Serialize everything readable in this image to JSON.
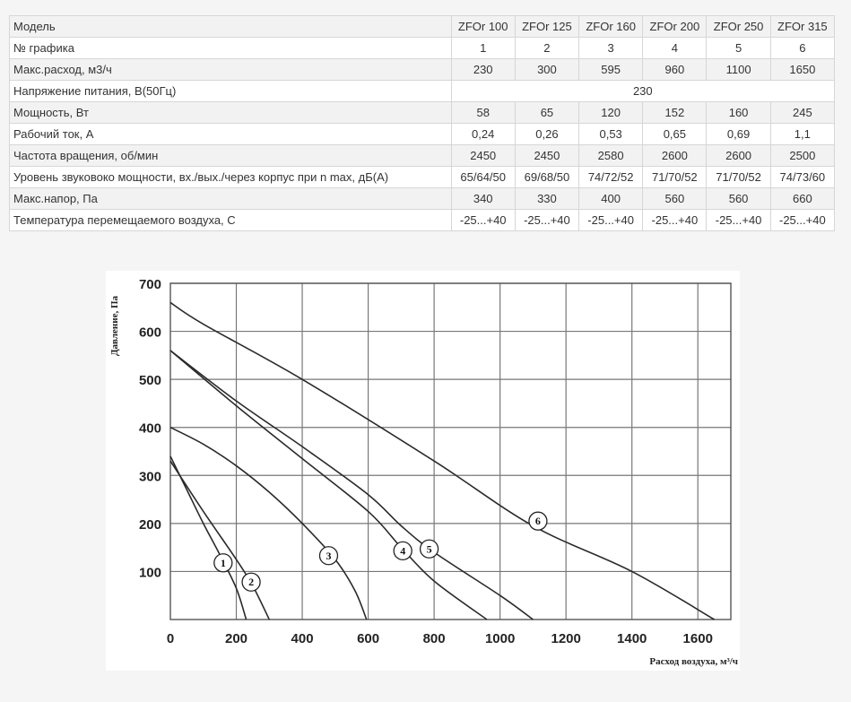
{
  "table": {
    "header": [
      "Модель",
      "ZFOr 100",
      "ZFOr 125",
      "ZFOr 160",
      "ZFOr 200",
      "ZFOr 250",
      "ZFOr 315"
    ],
    "rows": [
      {
        "label": "№ графика",
        "values": [
          "1",
          "2",
          "3",
          "4",
          "5",
          "6"
        ]
      },
      {
        "label": "Макс.расход, м3/ч",
        "values": [
          "230",
          "300",
          "595",
          "960",
          "1100",
          "1650"
        ]
      },
      {
        "label": "Напряжение питания, В(50Гц)",
        "values": [
          "230"
        ]
      },
      {
        "label": "Мощность, Вт",
        "values": [
          "58",
          "65",
          "120",
          "152",
          "160",
          "245"
        ]
      },
      {
        "label": "Рабочий ток, А",
        "values": [
          "0,24",
          "0,26",
          "0,53",
          "0,65",
          "0,69",
          "1,1"
        ]
      },
      {
        "label": "Частота вращения, об/мин",
        "values": [
          "2450",
          "2450",
          "2580",
          "2600",
          "2600",
          "2500"
        ]
      },
      {
        "label": "Уровень звуковоко мощности, вх./вых./через корпус при n max, дБ(А)",
        "values": [
          "65/64/50",
          "69/68/50",
          "74/72/52",
          "71/70/52",
          "71/70/52",
          "74/73/60"
        ]
      },
      {
        "label": "Макс.напор, Па",
        "values": [
          "340",
          "330",
          "400",
          "560",
          "560",
          "660"
        ]
      },
      {
        "label": "Температура перемещаемого воздуха, С",
        "values": [
          "-25...+40",
          "-25...+40",
          "-25...+40",
          "-25...+40",
          "-25...+40",
          "-25...+40"
        ]
      }
    ]
  },
  "chart_data": {
    "type": "line",
    "xlabel": "Расход воздуха, м³/ч",
    "ylabel": "Давление, Па",
    "xlim": [
      0,
      1700
    ],
    "ylim": [
      0,
      700
    ],
    "x_ticks": [
      0,
      200,
      400,
      600,
      800,
      1000,
      1200,
      1400,
      1600
    ],
    "y_ticks": [
      100,
      200,
      300,
      400,
      500,
      600,
      700
    ],
    "grid": true,
    "series": [
      {
        "name": "1",
        "points": [
          [
            0,
            340
          ],
          [
            50,
            270
          ],
          [
            100,
            200
          ],
          [
            150,
            135
          ],
          [
            200,
            65
          ],
          [
            230,
            0
          ]
        ]
      },
      {
        "name": "2",
        "points": [
          [
            0,
            330
          ],
          [
            100,
            225
          ],
          [
            200,
            125
          ],
          [
            250,
            70
          ],
          [
            300,
            0
          ]
        ]
      },
      {
        "name": "3",
        "points": [
          [
            0,
            400
          ],
          [
            100,
            365
          ],
          [
            200,
            320
          ],
          [
            300,
            265
          ],
          [
            400,
            200
          ],
          [
            500,
            125
          ],
          [
            560,
            60
          ],
          [
            595,
            0
          ]
        ]
      },
      {
        "name": "4",
        "points": [
          [
            0,
            560
          ],
          [
            200,
            445
          ],
          [
            400,
            335
          ],
          [
            600,
            225
          ],
          [
            700,
            150
          ],
          [
            800,
            80
          ],
          [
            960,
            0
          ]
        ]
      },
      {
        "name": "5",
        "points": [
          [
            0,
            560
          ],
          [
            200,
            455
          ],
          [
            400,
            360
          ],
          [
            600,
            260
          ],
          [
            700,
            195
          ],
          [
            800,
            140
          ],
          [
            1000,
            50
          ],
          [
            1100,
            0
          ]
        ]
      },
      {
        "name": "6",
        "points": [
          [
            0,
            660
          ],
          [
            100,
            615
          ],
          [
            400,
            500
          ],
          [
            800,
            330
          ],
          [
            1100,
            195
          ],
          [
            1400,
            100
          ],
          [
            1650,
            0
          ]
        ]
      }
    ],
    "markers": [
      {
        "series": "1",
        "x": 160,
        "y": 118
      },
      {
        "series": "2",
        "x": 245,
        "y": 78
      },
      {
        "series": "3",
        "x": 480,
        "y": 133
      },
      {
        "series": "4",
        "x": 705,
        "y": 143
      },
      {
        "series": "5",
        "x": 785,
        "y": 147
      },
      {
        "series": "6",
        "x": 1115,
        "y": 205
      }
    ]
  }
}
